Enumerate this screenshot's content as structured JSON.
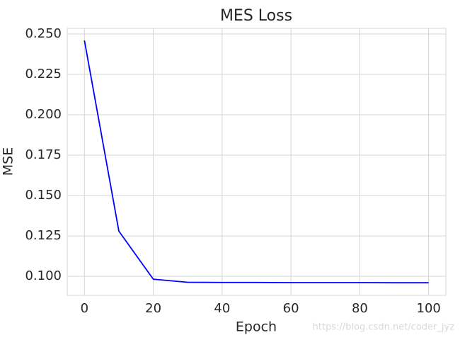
{
  "chart_data": {
    "type": "line",
    "title": "MES Loss",
    "x_label": "Epoch",
    "y_label": "MSE",
    "x": [
      0,
      10,
      20,
      30,
      40,
      50,
      60,
      70,
      80,
      90,
      100
    ],
    "series": [
      {
        "color": "#0000ff",
        "values": [
          0.246,
          0.128,
          0.0982,
          0.0963,
          0.0962,
          0.0962,
          0.0961,
          0.0961,
          0.0961,
          0.096,
          0.096
        ]
      }
    ],
    "xlim": [
      -5,
      105
    ],
    "xticks": [
      0,
      20,
      40,
      60,
      80,
      100
    ],
    "ylim": [
      0.0882,
      0.2535
    ],
    "yticks": [
      {
        "value": 0.1,
        "label": "0.100"
      },
      {
        "value": 0.125,
        "label": "0.125"
      },
      {
        "value": 0.15,
        "label": "0.150"
      },
      {
        "value": 0.175,
        "label": "0.175"
      },
      {
        "value": 0.2,
        "label": "0.200"
      },
      {
        "value": 0.225,
        "label": "0.225"
      },
      {
        "value": 0.25,
        "label": "0.250"
      }
    ],
    "grid": true,
    "watermark": "https://blog.csdn.net/coder_jyz"
  }
}
